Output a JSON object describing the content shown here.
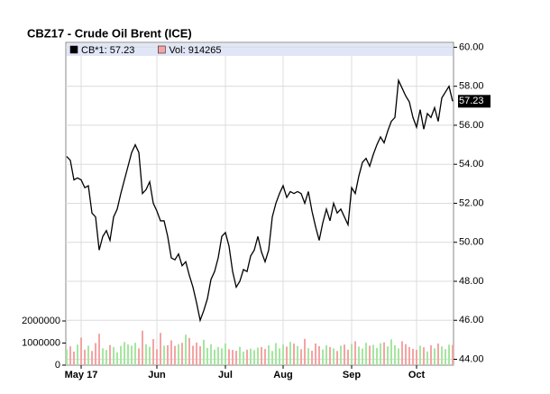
{
  "chart_data": {
    "type": "line",
    "title": "CBZ17 - Crude Oil Brent (ICE)",
    "categories": [
      null,
      null,
      null,
      null,
      "May 17",
      null,
      null,
      null,
      null,
      null,
      null,
      null,
      null,
      null,
      null,
      null,
      null,
      null,
      null,
      null,
      null,
      null,
      null,
      null,
      null,
      "Jun",
      null,
      null,
      null,
      null,
      null,
      null,
      null,
      null,
      null,
      null,
      null,
      null,
      null,
      null,
      null,
      null,
      null,
      null,
      "Jul",
      null,
      null,
      null,
      null,
      null,
      null,
      null,
      null,
      null,
      null,
      null,
      null,
      null,
      null,
      null,
      "Aug",
      null,
      null,
      null,
      null,
      null,
      null,
      null,
      null,
      null,
      null,
      null,
      null,
      null,
      null,
      null,
      null,
      null,
      null,
      "Sep",
      null,
      null,
      null,
      null,
      null,
      null,
      null,
      null,
      null,
      null,
      null,
      null,
      null,
      null,
      null,
      null,
      null,
      "Oct",
      null,
      null,
      null,
      null,
      null,
      null,
      null,
      null,
      null,
      null
    ],
    "series": [
      {
        "name": "CB*1: 57.23",
        "color": "#000000",
        "type": "line",
        "axis": "y2",
        "values": [
          54.4,
          54.2,
          53.2,
          53.3,
          53.2,
          52.8,
          52.9,
          51.5,
          51.3,
          49.6,
          50.3,
          50.6,
          50.1,
          51.3,
          51.7,
          52.5,
          53.2,
          53.9,
          54.6,
          55.0,
          54.6,
          52.5,
          52.7,
          53.1,
          52.0,
          51.6,
          51.1,
          51.1,
          50.3,
          49.2,
          49.1,
          49.4,
          48.8,
          49.0,
          48.3,
          47.7,
          46.9,
          46.0,
          46.5,
          47.1,
          48.1,
          48.5,
          49.2,
          50.3,
          50.5,
          49.8,
          48.5,
          47.7,
          48.0,
          48.6,
          48.5,
          49.3,
          49.6,
          50.3,
          49.5,
          49.0,
          49.6,
          51.3,
          52.0,
          52.5,
          52.9,
          52.3,
          52.6,
          52.5,
          52.6,
          52.5,
          52.0,
          52.6,
          51.6,
          50.8,
          50.1,
          51.0,
          51.7,
          51.1,
          52.0,
          51.5,
          51.7,
          51.3,
          50.9,
          52.8,
          52.5,
          53.4,
          54.1,
          54.3,
          53.9,
          54.5,
          55.0,
          55.4,
          55.1,
          55.7,
          56.2,
          56.4,
          58.3,
          57.9,
          57.5,
          57.2,
          56.4,
          55.9,
          56.8,
          55.8,
          56.6,
          56.4,
          56.9,
          56.2,
          57.4,
          57.7,
          58.0,
          57.23
        ]
      },
      {
        "name": "Vol: 914265",
        "color": "#f4a4a4",
        "type": "bar",
        "up_color": "#a6e6a0",
        "down_color": "#f4a4a4",
        "values": [
          720000,
          850000,
          610000,
          930000,
          1250000,
          700000,
          880000,
          640000,
          1000000,
          1420000,
          760000,
          690000,
          910000,
          820000,
          580000,
          870000,
          1050000,
          940000,
          880000,
          1010000,
          760000,
          1560000,
          950000,
          830000,
          1180000,
          720000,
          1460000,
          880000,
          900000,
          1120000,
          870000,
          950000,
          1010000,
          1380000,
          1230000,
          880000,
          1020000,
          860000,
          1150000,
          780000,
          940000,
          700000,
          820000,
          760000,
          980000,
          720000,
          690000,
          650000,
          830000,
          610000,
          700000,
          750000,
          680000,
          790000,
          820000,
          730000,
          900000,
          640000,
          1000000,
          760000,
          930000,
          840000,
          1050000,
          980000,
          870000,
          720000,
          1190000,
          770000,
          650000,
          980000,
          860000,
          710000,
          900000,
          820000,
          760000,
          640000,
          880000,
          930000,
          700000,
          960000,
          1080000,
          840000,
          750000,
          1010000,
          880000,
          920000,
          780000,
          990000,
          1030000,
          850000,
          1170000,
          900000,
          760000,
          1080000,
          950000,
          820000,
          740000,
          690000,
          880000,
          810000,
          620000,
          900000,
          760000,
          980000,
          850000,
          720000,
          930000,
          914265
        ]
      }
    ],
    "ylim": [
      0,
      2000000
    ],
    "yticks": [
      0,
      1000000,
      2000000
    ],
    "y2lim": [
      43.7,
      60.25
    ],
    "y2ticks": [
      {
        "value": 44,
        "label": "44.00"
      },
      {
        "value": 46,
        "label": "46.00"
      },
      {
        "value": 48,
        "label": "48.00"
      },
      {
        "value": 50,
        "label": "50.00"
      },
      {
        "value": 52,
        "label": "52.00"
      },
      {
        "value": 54,
        "label": "54.00"
      },
      {
        "value": 56,
        "label": "56.00"
      },
      {
        "value": 58,
        "label": "58.00"
      },
      {
        "value": 60,
        "label": "60.00"
      }
    ],
    "last_price": 57.23,
    "grid": true
  }
}
